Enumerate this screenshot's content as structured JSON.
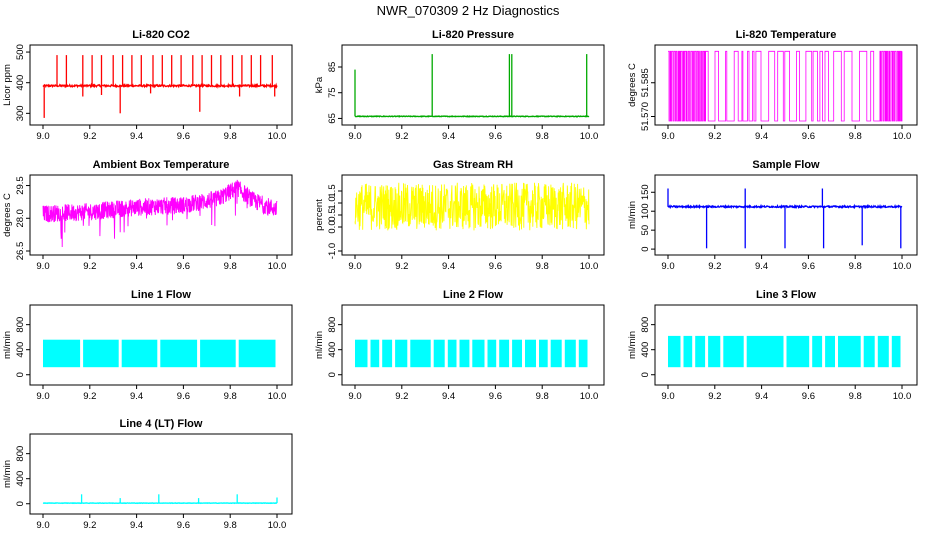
{
  "page_title": "NWR_070309  2 Hz Diagnostics",
  "chart_data": [
    {
      "type": "line",
      "title": "Li-820 CO2",
      "ylabel": "Licor ppm",
      "color": "#ff0000",
      "x_ticks": [
        "9.0",
        "9.2",
        "9.4",
        "9.6",
        "9.8",
        "10.0"
      ],
      "y_ticks": [
        "300",
        "400",
        "500"
      ],
      "x_range": [
        9.0,
        10.0
      ],
      "y_range": [
        275,
        510
      ],
      "series": [
        {
          "name": "Li-820 CO2",
          "baseline": 390,
          "noise": 6,
          "spikes_up": [
            [
              9.06,
              490
            ],
            [
              9.1,
              490
            ],
            [
              9.17,
              490
            ],
            [
              9.21,
              490
            ],
            [
              9.25,
              490
            ],
            [
              9.3,
              490
            ],
            [
              9.34,
              490
            ],
            [
              9.38,
              490
            ],
            [
              9.42,
              490
            ],
            [
              9.47,
              490
            ],
            [
              9.51,
              490
            ],
            [
              9.55,
              490
            ],
            [
              9.59,
              490
            ],
            [
              9.64,
              490
            ],
            [
              9.68,
              490
            ],
            [
              9.72,
              490
            ],
            [
              9.76,
              490
            ],
            [
              9.81,
              490
            ],
            [
              9.85,
              490
            ],
            [
              9.89,
              490
            ],
            [
              9.93,
              490
            ],
            [
              9.98,
              490
            ]
          ],
          "spikes_down": [
            [
              9.005,
              285
            ],
            [
              9.33,
              300
            ],
            [
              9.67,
              305
            ],
            [
              9.17,
              355
            ],
            [
              9.25,
              360
            ],
            [
              9.46,
              365
            ],
            [
              9.84,
              355
            ],
            [
              9.99,
              355
            ]
          ]
        }
      ]
    },
    {
      "type": "line",
      "title": "Li-820 Pressure",
      "ylabel": "kPa",
      "color": "#00aa00",
      "x_ticks": [
        "9.0",
        "9.2",
        "9.4",
        "9.6",
        "9.8",
        "10.0"
      ],
      "y_ticks": [
        "65",
        "75",
        "85"
      ],
      "x_range": [
        9.0,
        10.0
      ],
      "y_range": [
        64,
        92
      ],
      "series": [
        {
          "name": "Li-820 Pressure",
          "baseline": 65.8,
          "noise": 0.25,
          "spikes_up": [
            [
              9.0,
              84
            ],
            [
              9.33,
              90
            ],
            [
              9.66,
              90
            ],
            [
              9.67,
              90
            ],
            [
              9.99,
              90
            ]
          ],
          "spikes_down": []
        }
      ]
    },
    {
      "type": "line",
      "title": "Li-820 Temperature",
      "ylabel": "degrees C",
      "color": "#ff00ff",
      "x_ticks": [
        "9.0",
        "9.2",
        "9.4",
        "9.6",
        "9.8",
        "10.0"
      ],
      "y_ticks": [
        "51.570",
        "51.585"
      ],
      "x_range": [
        9.0,
        10.0
      ],
      "y_range": [
        51.568,
        51.6
      ],
      "series": [
        {
          "name": "Li-820 Temperature",
          "pattern": "square",
          "low": 51.568,
          "high": 51.599
        }
      ]
    },
    {
      "type": "line",
      "title": "Ambient Box Temperature",
      "ylabel": "degrees C",
      "color": "#ff00ff",
      "x_ticks": [
        "9.0",
        "9.2",
        "9.4",
        "9.6",
        "9.8",
        "10.0"
      ],
      "y_ticks": [
        "26.5",
        "28.0",
        "29.5"
      ],
      "x_range": [
        9.0,
        10.0
      ],
      "y_range": [
        26.5,
        29.8
      ],
      "series": [
        {
          "name": "Ambient Box Temperature",
          "trend": [
            [
              9.0,
              28.2
            ],
            [
              9.2,
              28.3
            ],
            [
              9.4,
              28.5
            ],
            [
              9.6,
              28.6
            ],
            [
              9.75,
              28.9
            ],
            [
              9.83,
              29.4
            ],
            [
              9.9,
              28.8
            ],
            [
              10.0,
              28.4
            ]
          ],
          "noise": 0.5
        }
      ]
    },
    {
      "type": "line",
      "title": "Gas Stream RH",
      "ylabel": "percent",
      "color": "#ffff00",
      "x_ticks": [
        "9.0",
        "9.2",
        "9.4",
        "9.6",
        "9.8",
        "10.0"
      ],
      "y_ticks": [
        "-1.0",
        "0.0",
        "0.5",
        "1.0",
        "1.5"
      ],
      "x_range": [
        9.0,
        10.0
      ],
      "y_range": [
        -1.0,
        2.0
      ],
      "series": [
        {
          "name": "Gas Stream RH",
          "band_low": -0.1,
          "band_high": 1.8,
          "noise": 1.2
        }
      ]
    },
    {
      "type": "line",
      "title": "Sample Flow",
      "ylabel": "ml/min",
      "color": "#0000ff",
      "x_ticks": [
        "9.0",
        "9.2",
        "9.4",
        "9.6",
        "9.8",
        "10.0"
      ],
      "y_ticks": [
        "0",
        "50",
        "100",
        "150"
      ],
      "x_range": [
        9.0,
        10.0
      ],
      "y_range": [
        -5,
        185
      ],
      "series": [
        {
          "name": "Sample Flow",
          "baseline": 112,
          "noise": 4,
          "spikes_up": [
            [
              9.0,
              160
            ],
            [
              9.33,
              160
            ],
            [
              9.66,
              160
            ]
          ],
          "spikes_down": [
            [
              9.165,
              2
            ],
            [
              9.33,
              2
            ],
            [
              9.5,
              2
            ],
            [
              9.665,
              2
            ],
            [
              9.83,
              10
            ],
            [
              9.995,
              2
            ]
          ]
        }
      ]
    },
    {
      "type": "line",
      "title": "Line 1 Flow",
      "ylabel": "ml/min",
      "color": "#00ffff",
      "x_ticks": [
        "9.0",
        "9.2",
        "9.4",
        "9.6",
        "9.8",
        "10.0"
      ],
      "y_ticks": [
        "0",
        "400",
        "800"
      ],
      "x_range": [
        9.0,
        10.0
      ],
      "y_range": [
        -100,
        1050
      ],
      "series": [
        {
          "name": "Line 1 Flow",
          "band_low": 120,
          "band_high": 560,
          "gaps": [
            9.165,
            9.33,
            9.495,
            9.665,
            9.83
          ]
        }
      ]
    },
    {
      "type": "line",
      "title": "Line 2 Flow",
      "ylabel": "ml/min",
      "color": "#00ffff",
      "x_ticks": [
        "9.0",
        "9.2",
        "9.4",
        "9.6",
        "9.8",
        "10.0"
      ],
      "y_ticks": [
        "0",
        "400",
        "800"
      ],
      "x_range": [
        9.0,
        10.0
      ],
      "y_range": [
        -100,
        1050
      ],
      "series": [
        {
          "name": "Line 2 Flow",
          "band_low": 120,
          "band_high": 560,
          "gaps": [
            9.06,
            9.11,
            9.165,
            9.23,
            9.33,
            9.39,
            9.44,
            9.495,
            9.56,
            9.61,
            9.665,
            9.72,
            9.78,
            9.83,
            9.89,
            9.95
          ]
        }
      ]
    },
    {
      "type": "line",
      "title": "Line 3 Flow",
      "ylabel": "ml/min",
      "color": "#00ffff",
      "x_ticks": [
        "9.0",
        "9.2",
        "9.4",
        "9.6",
        "9.8",
        "10.0"
      ],
      "y_ticks": [
        "0",
        "400",
        "800"
      ],
      "x_range": [
        9.0,
        10.0
      ],
      "y_range": [
        -100,
        1050
      ],
      "series": [
        {
          "name": "Line 3 Flow",
          "band_low": 120,
          "band_high": 620,
          "gaps": [
            9.06,
            9.11,
            9.165,
            9.23,
            9.33,
            9.5,
            9.61,
            9.665,
            9.72,
            9.83,
            9.89,
            9.95
          ]
        }
      ]
    },
    {
      "type": "line",
      "title": "Line 4 (LT) Flow",
      "ylabel": "ml/min",
      "color": "#00ffff",
      "x_ticks": [
        "9.0",
        "9.2",
        "9.4",
        "9.6",
        "9.8",
        "10.0"
      ],
      "y_ticks": [
        "0",
        "400",
        "800"
      ],
      "x_range": [
        9.0,
        10.0
      ],
      "y_range": [
        -100,
        1050
      ],
      "series": [
        {
          "name": "Line 4 (LT) Flow",
          "baseline": 10,
          "noise": 6,
          "spikes_up": [
            [
              9.165,
              150
            ],
            [
              9.33,
              90
            ],
            [
              9.495,
              150
            ],
            [
              9.665,
              90
            ],
            [
              9.83,
              150
            ],
            [
              10.0,
              100
            ]
          ],
          "spikes_down": []
        }
      ]
    }
  ]
}
